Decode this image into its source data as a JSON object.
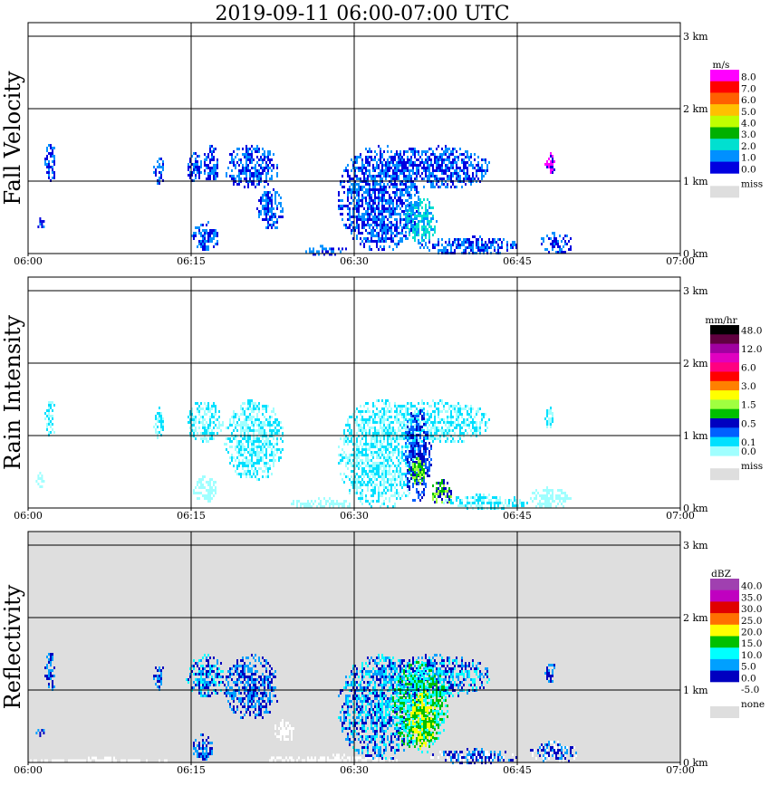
{
  "title": "2019-09-11   06:00-07:00 UTC",
  "time_ticks": [
    "06:00",
    "06:15",
    "06:30",
    "06:45",
    "07:00"
  ],
  "height_ticks": [
    "0 km",
    "1 km",
    "2 km",
    "3 km"
  ],
  "chart_data": [
    {
      "type": "heatmap",
      "title": "2019-09-11   06:00-07:00 UTC",
      "ylabel": "Fall Velocity",
      "xlim": [
        "06:00",
        "07:00"
      ],
      "ylim_km": [
        0,
        3.5
      ],
      "background": "#ffffff",
      "legend_unit": "m/s",
      "legend_missing": "miss",
      "legend": [
        {
          "label": "8.0",
          "color": "#ff00ff"
        },
        {
          "label": "7.0",
          "color": "#ff0000"
        },
        {
          "label": "6.0",
          "color": "#ff6000"
        },
        {
          "label": "5.0",
          "color": "#ffc000"
        },
        {
          "label": "4.0",
          "color": "#c0ff00"
        },
        {
          "label": "3.0",
          "color": "#00b000"
        },
        {
          "label": "2.0",
          "color": "#00e0d0"
        },
        {
          "label": "1.0",
          "color": "#0090ff"
        },
        {
          "label": "0.0",
          "color": "#0000e0"
        }
      ],
      "echoes": [
        {
          "t": [
            1.5,
            2.5
          ],
          "h": [
            1.0,
            1.55
          ],
          "c": [
            "#0000e0",
            "#0090ff"
          ]
        },
        {
          "t": [
            0.7,
            1.5
          ],
          "h": [
            0.35,
            0.5
          ],
          "c": [
            "#0090ff",
            "#0000e0"
          ]
        },
        {
          "t": [
            11.5,
            12.5
          ],
          "h": [
            0.95,
            1.4
          ],
          "c": [
            "#0090ff",
            "#0000e0"
          ]
        },
        {
          "t": [
            14.5,
            16.0
          ],
          "h": [
            1.0,
            1.4
          ],
          "c": [
            "#0090ff",
            "#0000e0"
          ]
        },
        {
          "t": [
            15.0,
            17.5
          ],
          "h": [
            0.05,
            0.45
          ],
          "c": [
            "#0090ff",
            "#0000e0"
          ]
        },
        {
          "t": [
            16.0,
            17.5
          ],
          "h": [
            1.0,
            1.5
          ],
          "c": [
            "#0090ff",
            "#0000e0"
          ]
        },
        {
          "t": [
            18.0,
            23.0
          ],
          "h": [
            0.9,
            1.5
          ],
          "c": [
            "#0090ff",
            "#0000e0"
          ]
        },
        {
          "t": [
            21.0,
            23.5
          ],
          "h": [
            0.35,
            0.9
          ],
          "c": [
            "#0090ff",
            "#0000e0"
          ]
        },
        {
          "t": [
            25.0,
            29.5
          ],
          "h": [
            0.0,
            0.12
          ],
          "c": [
            "#0000e0",
            "#0090ff"
          ]
        },
        {
          "t": [
            28.5,
            36.0
          ],
          "h": [
            0.05,
            1.5
          ],
          "c": [
            "#0090ff",
            "#0000e0"
          ]
        },
        {
          "t": [
            32.5,
            42.5
          ],
          "h": [
            0.9,
            1.5
          ],
          "c": [
            "#0090ff",
            "#0000e0"
          ]
        },
        {
          "t": [
            34.5,
            37.5
          ],
          "h": [
            0.15,
            0.8
          ],
          "c": [
            "#00e0d0",
            "#0090ff"
          ]
        },
        {
          "t": [
            36.0,
            45.0
          ],
          "h": [
            0.0,
            0.25
          ],
          "c": [
            "#0090ff",
            "#0000e0"
          ]
        },
        {
          "t": [
            47.0,
            50.0
          ],
          "h": [
            0.0,
            0.3
          ],
          "c": [
            "#0000e0",
            "#0090ff"
          ]
        },
        {
          "t": [
            47.5,
            48.5
          ],
          "h": [
            1.1,
            1.4
          ],
          "c": [
            "#0000e0",
            "#ff00ff"
          ]
        }
      ]
    },
    {
      "type": "heatmap",
      "ylabel": "Rain Intensity",
      "xlim": [
        "06:00",
        "07:00"
      ],
      "ylim_km": [
        0,
        3.5
      ],
      "background": "#ffffff",
      "legend_unit": "mm/hr",
      "legend_missing": "miss",
      "legend": [
        {
          "label": "48.0",
          "color": "#000000"
        },
        {
          "label": "",
          "color": "#600040"
        },
        {
          "label": "12.0",
          "color": "#a000a0"
        },
        {
          "label": "",
          "color": "#e000c0"
        },
        {
          "label": "6.0",
          "color": "#ff0080"
        },
        {
          "label": "",
          "color": "#ff0000"
        },
        {
          "label": "3.0",
          "color": "#ff8000"
        },
        {
          "label": "",
          "color": "#ffff00"
        },
        {
          "label": "1.5",
          "color": "#a0ff40"
        },
        {
          "label": "",
          "color": "#00c000"
        },
        {
          "label": "0.5",
          "color": "#0000c0"
        },
        {
          "label": "",
          "color": "#0060ff"
        },
        {
          "label": "0.1",
          "color": "#00e0ff"
        },
        {
          "label": "0.0",
          "color": "#a0ffff"
        }
      ],
      "echoes": [
        {
          "t": [
            1.5,
            2.5
          ],
          "h": [
            1.0,
            1.55
          ],
          "c": [
            "#a0ffff",
            "#00e0ff"
          ]
        },
        {
          "t": [
            0.7,
            1.5
          ],
          "h": [
            0.3,
            0.5
          ],
          "c": [
            "#a0ffff"
          ]
        },
        {
          "t": [
            11.5,
            12.5
          ],
          "h": [
            0.95,
            1.4
          ],
          "c": [
            "#a0ffff",
            "#00e0ff"
          ]
        },
        {
          "t": [
            14.5,
            18.0
          ],
          "h": [
            0.9,
            1.5
          ],
          "c": [
            "#a0ffff",
            "#00e0ff"
          ]
        },
        {
          "t": [
            15.0,
            17.5
          ],
          "h": [
            0.1,
            0.45
          ],
          "c": [
            "#a0ffff"
          ]
        },
        {
          "t": [
            18.0,
            23.5
          ],
          "h": [
            0.4,
            1.5
          ],
          "c": [
            "#a0ffff",
            "#00e0ff"
          ]
        },
        {
          "t": [
            24.0,
            30.0
          ],
          "h": [
            0.0,
            0.15
          ],
          "c": [
            "#a0ffff"
          ]
        },
        {
          "t": [
            28.5,
            36.0
          ],
          "h": [
            0.0,
            1.5
          ],
          "c": [
            "#a0ffff",
            "#00e0ff"
          ]
        },
        {
          "t": [
            32.0,
            42.5
          ],
          "h": [
            0.9,
            1.5
          ],
          "c": [
            "#a0ffff",
            "#00e0ff"
          ]
        },
        {
          "t": [
            34.5,
            37.0
          ],
          "h": [
            0.1,
            1.4
          ],
          "c": [
            "#0060ff",
            "#0000c0"
          ]
        },
        {
          "t": [
            35.0,
            36.5
          ],
          "h": [
            0.35,
            0.7
          ],
          "c": [
            "#00c000",
            "#a0ff40"
          ]
        },
        {
          "t": [
            37.0,
            39.0
          ],
          "h": [
            0.05,
            0.4
          ],
          "c": [
            "#00c000",
            "#a0ff40",
            "#0000c0"
          ]
        },
        {
          "t": [
            38.0,
            46.0
          ],
          "h": [
            0.0,
            0.2
          ],
          "c": [
            "#a0ffff",
            "#00e0ff"
          ]
        },
        {
          "t": [
            46.0,
            50.0
          ],
          "h": [
            0.0,
            0.3
          ],
          "c": [
            "#a0ffff"
          ]
        },
        {
          "t": [
            47.5,
            48.5
          ],
          "h": [
            1.1,
            1.4
          ],
          "c": [
            "#a0ffff",
            "#00e0ff"
          ]
        }
      ]
    },
    {
      "type": "heatmap",
      "ylabel": "Reflectivity",
      "xlim": [
        "06:00",
        "07:00"
      ],
      "ylim_km": [
        0,
        3.5
      ],
      "background": "#dedede",
      "legend_unit": "dBZ",
      "legend_missing": "none",
      "legend": [
        {
          "label": "40.0",
          "color": "#a040b0"
        },
        {
          "label": "35.0",
          "color": "#c000c0"
        },
        {
          "label": "30.0",
          "color": "#e00000"
        },
        {
          "label": "25.0",
          "color": "#ff7000"
        },
        {
          "label": "20.0",
          "color": "#ffff00"
        },
        {
          "label": "15.0",
          "color": "#00c000"
        },
        {
          "label": "10.0",
          "color": "#00ffff"
        },
        {
          "label": "5.0",
          "color": "#00a0ff"
        },
        {
          "label": "0.0",
          "color": "#0000c0"
        },
        {
          "label": "-5.0",
          "color": "#ffffff"
        }
      ],
      "echoes": [
        {
          "t": [
            0.0,
            13.0
          ],
          "h": [
            0.0,
            0.08
          ],
          "c": [
            "#ffffff"
          ]
        },
        {
          "t": [
            22.0,
            34.0
          ],
          "h": [
            0.0,
            0.12
          ],
          "c": [
            "#ffffff"
          ]
        },
        {
          "t": [
            22.5,
            24.5
          ],
          "h": [
            0.3,
            0.6
          ],
          "c": [
            "#ffffff"
          ]
        },
        {
          "t": [
            1.5,
            2.5
          ],
          "h": [
            1.0,
            1.55
          ],
          "c": [
            "#0000c0",
            "#00a0ff"
          ]
        },
        {
          "t": [
            0.7,
            1.5
          ],
          "h": [
            0.35,
            0.5
          ],
          "c": [
            "#00a0ff",
            "#0000c0"
          ]
        },
        {
          "t": [
            11.5,
            12.5
          ],
          "h": [
            0.95,
            1.4
          ],
          "c": [
            "#00a0ff",
            "#0000c0"
          ]
        },
        {
          "t": [
            14.5,
            18.0
          ],
          "h": [
            0.9,
            1.5
          ],
          "c": [
            "#00a0ff",
            "#0000c0",
            "#00ffff"
          ]
        },
        {
          "t": [
            15.0,
            17.0
          ],
          "h": [
            0.05,
            0.4
          ],
          "c": [
            "#00a0ff",
            "#0000c0"
          ]
        },
        {
          "t": [
            18.0,
            23.0
          ],
          "h": [
            0.6,
            1.5
          ],
          "c": [
            "#00a0ff",
            "#0000c0"
          ]
        },
        {
          "t": [
            28.5,
            36.0
          ],
          "h": [
            0.05,
            1.5
          ],
          "c": [
            "#00a0ff",
            "#00ffff",
            "#0000c0"
          ]
        },
        {
          "t": [
            32.0,
            42.5
          ],
          "h": [
            0.9,
            1.5
          ],
          "c": [
            "#00ffff",
            "#00a0ff",
            "#0000c0"
          ]
        },
        {
          "t": [
            33.5,
            38.5
          ],
          "h": [
            0.15,
            1.4
          ],
          "c": [
            "#00c000",
            "#00ffff"
          ]
        },
        {
          "t": [
            35.0,
            37.5
          ],
          "h": [
            0.2,
            1.0
          ],
          "c": [
            "#ffff00",
            "#00c000"
          ]
        },
        {
          "t": [
            37.0,
            45.0
          ],
          "h": [
            0.0,
            0.2
          ],
          "c": [
            "#0000c0",
            "#00a0ff",
            "#ffffff"
          ]
        },
        {
          "t": [
            46.0,
            50.5
          ],
          "h": [
            0.0,
            0.3
          ],
          "c": [
            "#0000c0",
            "#00a0ff",
            "#ffffff"
          ]
        },
        {
          "t": [
            47.5,
            48.5
          ],
          "h": [
            1.1,
            1.4
          ],
          "c": [
            "#0000c0",
            "#00a0ff"
          ]
        }
      ]
    }
  ]
}
